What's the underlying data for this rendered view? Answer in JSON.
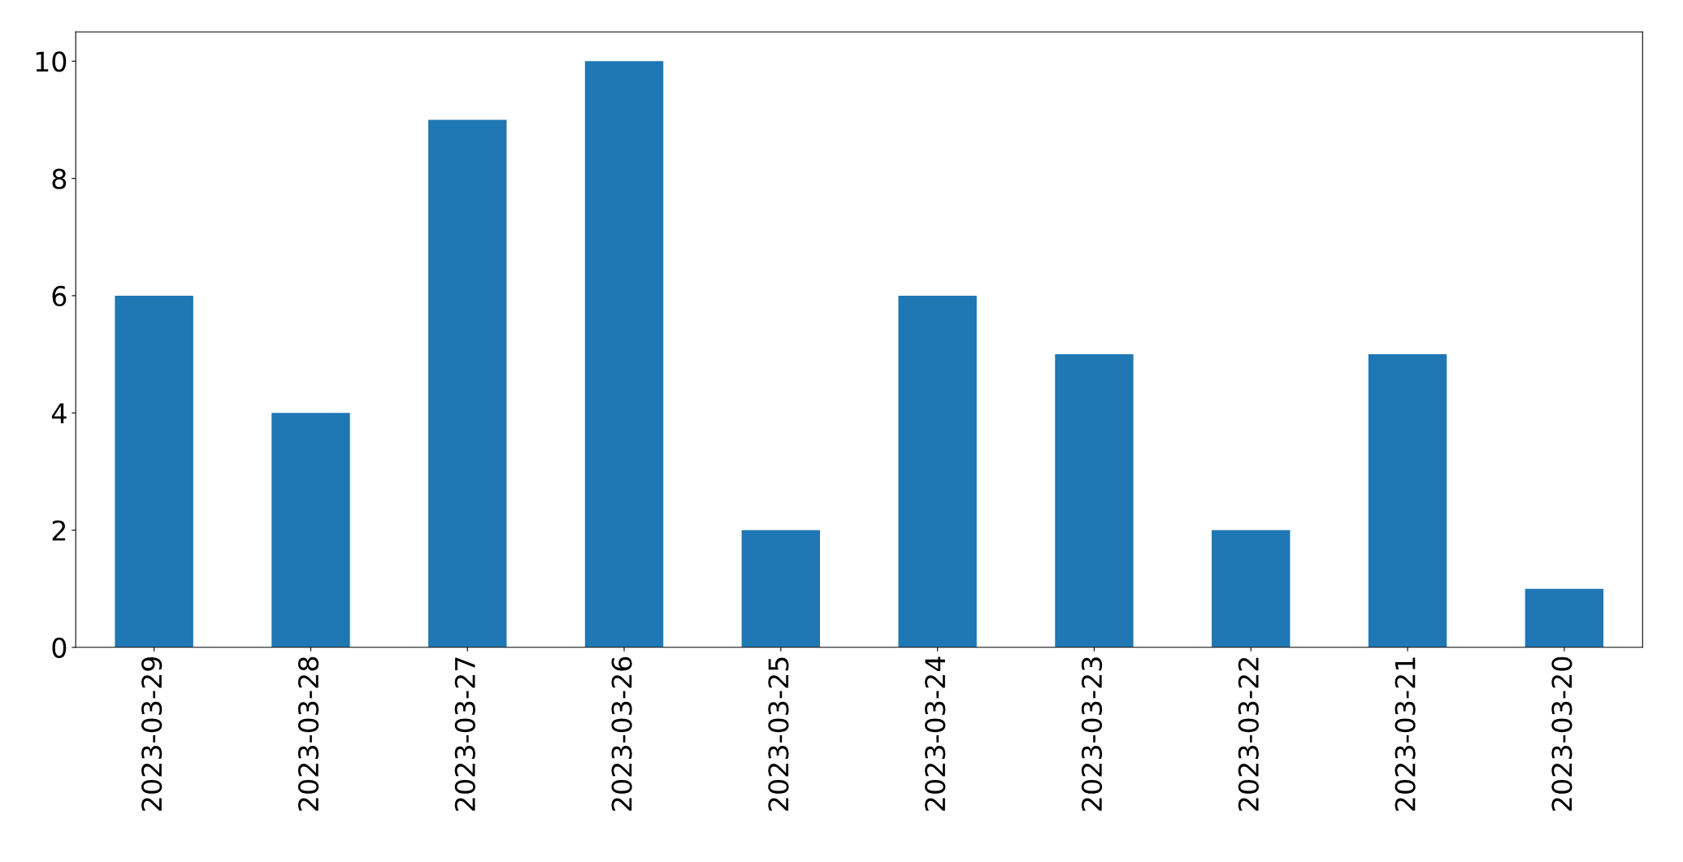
{
  "chart_data": {
    "type": "bar",
    "categories": [
      "2023-03-29",
      "2023-03-28",
      "2023-03-27",
      "2023-03-26",
      "2023-03-25",
      "2023-03-24",
      "2023-03-23",
      "2023-03-22",
      "2023-03-21",
      "2023-03-20"
    ],
    "values": [
      6,
      4,
      9,
      10,
      2,
      6,
      5,
      2,
      5,
      1
    ],
    "color": "#1f77b4",
    "ylim": [
      0,
      10.5
    ],
    "yticks": [
      0,
      2,
      4,
      6,
      8,
      10
    ],
    "grid": false,
    "legend": false
  }
}
